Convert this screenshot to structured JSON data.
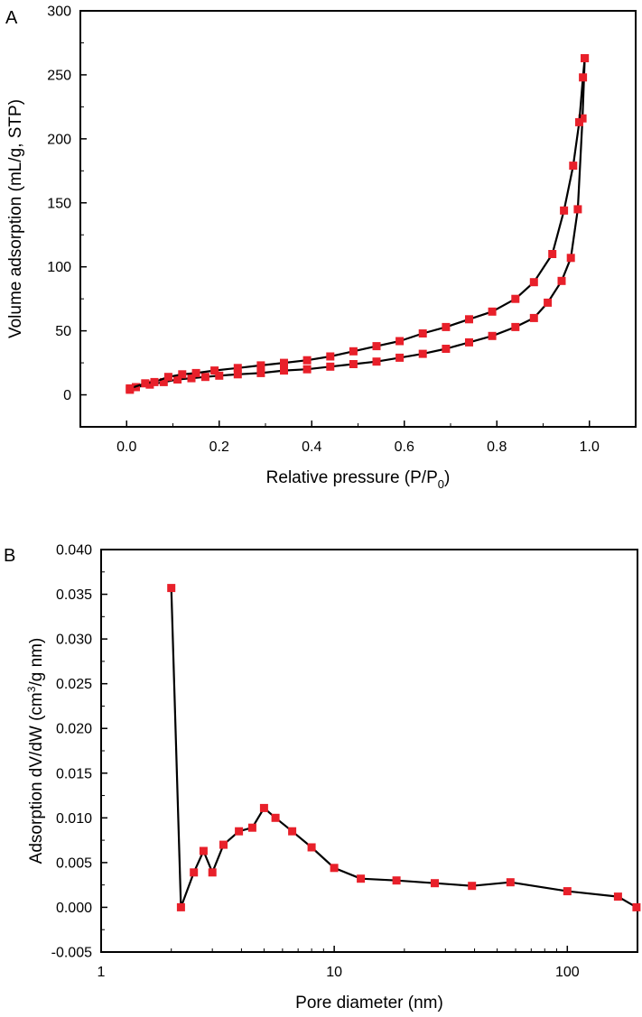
{
  "panels": [
    {
      "label": "A"
    },
    {
      "label": "B"
    }
  ],
  "colors": {
    "marker": "#e8202a",
    "line": "#000000",
    "axis": "#000000"
  },
  "chart_data": [
    {
      "type": "scatter",
      "xlabel": "Relative pressure (P/P",
      "xlabel_sub": "0",
      "xlabel_end": ")",
      "ylabel": "Volume adsorption (mL/g, STP)",
      "xlim": [
        -0.1,
        1.1
      ],
      "ylim": [
        -25,
        300
      ],
      "xticks": [
        0.0,
        0.2,
        0.4,
        0.6,
        0.8,
        1.0
      ],
      "xtick_labels": [
        "0.0",
        "0.2",
        "0.4",
        "0.6",
        "0.8",
        "1.0"
      ],
      "yticks": [
        0,
        50,
        100,
        150,
        200,
        250,
        300
      ],
      "ytick_labels": [
        "0",
        "50",
        "100",
        "150",
        "200",
        "250",
        "300"
      ],
      "series": [
        {
          "x": [
            0.007,
            0.02,
            0.05,
            0.08,
            0.11,
            0.14,
            0.17,
            0.2,
            0.24,
            0.29,
            0.34,
            0.39,
            0.44,
            0.49,
            0.54,
            0.59,
            0.64,
            0.69,
            0.74,
            0.79,
            0.84,
            0.88,
            0.91,
            0.94,
            0.96,
            0.975,
            0.985,
            0.99
          ],
          "y": [
            4,
            6,
            8,
            10,
            12,
            13,
            14,
            15,
            16,
            17,
            19,
            20,
            22,
            24,
            26,
            29,
            32,
            36,
            41,
            46,
            53,
            60,
            72,
            89,
            107,
            145,
            216,
            263
          ]
        },
        {
          "x": [
            0.007,
            0.04,
            0.06,
            0.09,
            0.12,
            0.15,
            0.19,
            0.24,
            0.29,
            0.34,
            0.39,
            0.44,
            0.49,
            0.54,
            0.59,
            0.64,
            0.69,
            0.74,
            0.79,
            0.84,
            0.88,
            0.92,
            0.945,
            0.965,
            0.978,
            0.986,
            0.99
          ],
          "y": [
            5,
            9,
            10,
            14,
            16,
            17,
            19,
            21,
            23,
            25,
            27,
            30,
            34,
            38,
            42,
            48,
            53,
            59,
            65,
            75,
            88,
            110,
            144,
            179,
            213,
            248,
            263
          ]
        }
      ]
    },
    {
      "type": "scatter",
      "xscale": "log",
      "xlabel": "Pore diameter (nm)",
      "ylabel": "Adsorption dV/dW (cm",
      "ylabel_sup": "3",
      "ylabel_end": "/g nm)",
      "xlim": [
        1,
        200
      ],
      "ylim": [
        -0.005,
        0.04
      ],
      "xticks": [
        1,
        10,
        100
      ],
      "xtick_labels": [
        "1",
        "10",
        "100"
      ],
      "yticks": [
        -0.005,
        0.0,
        0.005,
        0.01,
        0.015,
        0.02,
        0.025,
        0.03,
        0.035,
        0.04
      ],
      "ytick_labels": [
        "-0.005",
        "0.000",
        "0.005",
        "0.010",
        "0.015",
        "0.020",
        "0.025",
        "0.030",
        "0.035",
        "0.040"
      ],
      "series": [
        {
          "x": [
            2.0,
            2.2,
            2.5,
            2.75,
            3.0,
            3.35,
            3.9,
            4.45,
            5.0,
            5.6,
            6.6,
            8.0,
            10.0,
            13.0,
            18.5,
            27.0,
            39.0,
            57.0,
            100.0,
            165.0,
            198.0
          ],
          "y": [
            0.0357,
            0.0,
            0.0039,
            0.0063,
            0.0039,
            0.007,
            0.0085,
            0.0089,
            0.0111,
            0.01,
            0.0085,
            0.0067,
            0.0044,
            0.0032,
            0.003,
            0.0027,
            0.0024,
            0.0028,
            0.0018,
            0.0012,
            0.0
          ]
        }
      ]
    }
  ]
}
